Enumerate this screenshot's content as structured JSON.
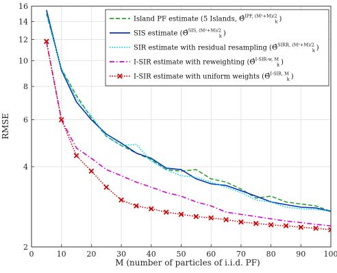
{
  "chart_data": {
    "type": "line",
    "title": "",
    "xlabel": "M (number of particles of i.i.d. PF)",
    "ylabel": "RMSE",
    "xlim": [
      0,
      100
    ],
    "ylim": [
      2,
      16
    ],
    "yscale": "log",
    "grid": true,
    "legend_position": "top-right",
    "xticks": [
      "0",
      "10",
      "20",
      "30",
      "40",
      "50",
      "60",
      "70",
      "80",
      "90",
      "100"
    ],
    "yticks": [
      "2",
      "4",
      "6",
      "8",
      "10",
      "12",
      "14",
      "16"
    ],
    "series": [
      {
        "name": "Island PF estimate (5 Islands, Θ̂_k^{IPF, M²+M/2})",
        "legend_main": "Island PF estimate (5 Islands, ",
        "legend_theta": "Θ̂",
        "legend_sub": "k",
        "legend_sup": "IPF, (M²+M)/2",
        "legend_close": ")",
        "color": "#2ca02c",
        "style": "dashed",
        "marker": "none",
        "x": [
          5,
          10,
          15,
          20,
          25,
          30,
          35,
          40,
          45,
          50,
          55,
          60,
          65,
          70,
          75,
          80,
          85,
          90,
          95,
          100
        ],
        "y": [
          15.0,
          9.3,
          7.4,
          6.1,
          5.2,
          4.8,
          4.5,
          4.25,
          3.9,
          3.85,
          3.9,
          3.6,
          3.5,
          3.3,
          3.05,
          3.1,
          2.95,
          2.9,
          2.85,
          2.72
        ]
      },
      {
        "name": "SIS estimate (Θ̂_k^{SIS, M²+M/2})",
        "legend_main": "SIS estimate (",
        "legend_theta": "Θ̂",
        "legend_sub": "k",
        "legend_sup": "SIS, (M²+M)/2",
        "legend_close": ")",
        "color": "#0033bb",
        "style": "solid",
        "marker": "none",
        "x": [
          5,
          10,
          15,
          20,
          25,
          30,
          35,
          40,
          45,
          50,
          55,
          60,
          65,
          70,
          75,
          80,
          85,
          90,
          95,
          100
        ],
        "y": [
          15.5,
          9.2,
          7.0,
          6.0,
          5.3,
          4.9,
          4.5,
          4.3,
          3.95,
          3.9,
          3.6,
          3.45,
          3.4,
          3.25,
          3.1,
          2.95,
          2.88,
          2.82,
          2.8,
          2.72
        ]
      },
      {
        "name": "SIR estimate with residual resampling (Θ̂_k^{SIRR, M²+M/2})",
        "legend_main": "SIR estimate with residual resampling (",
        "legend_theta": "Θ̂",
        "legend_sub": "k",
        "legend_sup": "SIRR, (M²+M)/2",
        "legend_close": ")",
        "color": "#00d2ee",
        "style": "dotted",
        "marker": "none",
        "x": [
          5,
          10,
          15,
          20,
          25,
          30,
          35,
          40,
          45,
          50,
          55,
          60,
          65,
          70,
          75,
          80,
          85,
          90,
          95,
          100
        ],
        "y": [
          15.0,
          9.3,
          7.2,
          6.2,
          5.2,
          4.8,
          4.85,
          4.2,
          3.9,
          3.7,
          3.65,
          3.5,
          3.35,
          3.2,
          3.0,
          2.95,
          2.82,
          2.78,
          2.76,
          2.74
        ]
      },
      {
        "name": "I-SIR estimate with reweighting (Θ̂_k^{I-SIR-w, M})",
        "legend_main": "I-SIR estimate with reweighting (",
        "legend_theta": "Θ̂",
        "legend_sub": "k",
        "legend_sup": "I-SIR-w, M",
        "legend_close": ")",
        "color": "#d600d6",
        "style": "dashdot",
        "marker": "none",
        "x": [
          5,
          10,
          15,
          20,
          25,
          30,
          35,
          40,
          45,
          50,
          55,
          60,
          65,
          70,
          75,
          80,
          85,
          90,
          95,
          100
        ],
        "y": [
          11.8,
          6.0,
          4.7,
          4.3,
          3.9,
          3.7,
          3.5,
          3.35,
          3.2,
          3.1,
          2.95,
          2.85,
          2.7,
          2.65,
          2.6,
          2.55,
          2.5,
          2.47,
          2.43,
          2.4
        ]
      },
      {
        "name": "I-SIR estimate with uniform weights (Θ̂_k^{I-SIR, M})",
        "legend_main": "I-SIR estimate with uniform weights (",
        "legend_theta": "Θ̂",
        "legend_sub": "k",
        "legend_sup": "I-SIR, M",
        "legend_close": ")",
        "color": "#cc0000",
        "style": "dotted",
        "marker": "x",
        "x": [
          5,
          10,
          15,
          20,
          25,
          30,
          35,
          40,
          45,
          50,
          55,
          60,
          65,
          70,
          75,
          80,
          85,
          90,
          95,
          100
        ],
        "y": [
          11.8,
          6.0,
          4.4,
          3.85,
          3.35,
          3.0,
          2.85,
          2.78,
          2.7,
          2.65,
          2.6,
          2.57,
          2.53,
          2.48,
          2.45,
          2.42,
          2.4,
          2.37,
          2.35,
          2.32
        ]
      }
    ]
  }
}
